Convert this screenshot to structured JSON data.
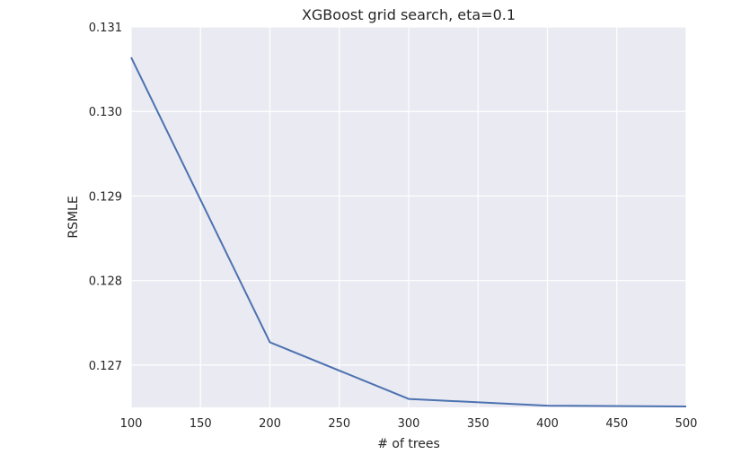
{
  "chart_data": {
    "type": "line",
    "title": "XGBoost grid search, eta=0.1",
    "xlabel": "# of trees",
    "ylabel": "RSMLE",
    "xlim": [
      100,
      500
    ],
    "ylim": [
      0.1265,
      0.131
    ],
    "grid": true,
    "x_ticks": [
      "100",
      "150",
      "200",
      "250",
      "300",
      "350",
      "400",
      "450",
      "500"
    ],
    "y_ticks": [
      "0.127",
      "0.128",
      "0.129",
      "0.130",
      "0.131"
    ],
    "x": [
      100,
      200,
      300,
      400,
      500
    ],
    "series": [
      {
        "values": [
          0.13064,
          0.12727,
          0.1266,
          0.12652,
          0.12651
        ],
        "color": "#4c72b0"
      }
    ],
    "background_color": "#eaeaf2"
  }
}
